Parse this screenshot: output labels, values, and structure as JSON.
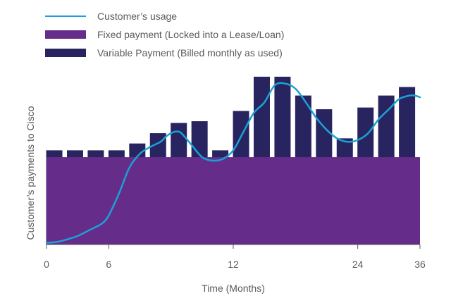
{
  "chart_data": {
    "type": "bar",
    "title": "",
    "xlabel": "Time (Months)",
    "ylabel": "Customer’s payments to Cisco",
    "xlim": [
      0,
      36
    ],
    "ylim": [
      0,
      100
    ],
    "xticks": [
      "0",
      "6",
      "12",
      "24",
      "36"
    ],
    "legend_position": "top-left",
    "grid": false,
    "colors": {
      "usage": "#1aa1d6",
      "fixed": "#652d89",
      "variable": "#28245f",
      "axis": "#555555"
    },
    "legend": [
      {
        "key": "usage",
        "label": "Customer’s usage",
        "kind": "line"
      },
      {
        "key": "fixed",
        "label": "Fixed payment (Locked into a Lease/Loan)",
        "kind": "box"
      },
      {
        "key": "variable",
        "label": "Variable Payment (Billed monthly as used)",
        "kind": "box"
      }
    ],
    "fixed_payment": 51,
    "bars": [
      {
        "x": 0.75,
        "value": 55
      },
      {
        "x": 2.75,
        "value": 55
      },
      {
        "x": 4.75,
        "value": 55
      },
      {
        "x": 6.75,
        "value": 55
      },
      {
        "x": 8.75,
        "value": 59
      },
      {
        "x": 10.75,
        "value": 65
      },
      {
        "x": 12.75,
        "value": 71
      },
      {
        "x": 14.75,
        "value": 72
      },
      {
        "x": 16.75,
        "value": 55
      },
      {
        "x": 18.75,
        "value": 78
      },
      {
        "x": 20.75,
        "value": 98
      },
      {
        "x": 22.75,
        "value": 98
      },
      {
        "x": 24.75,
        "value": 87
      },
      {
        "x": 26.75,
        "value": 79
      },
      {
        "x": 28.75,
        "value": 62
      },
      {
        "x": 30.75,
        "value": 80
      },
      {
        "x": 32.75,
        "value": 87
      },
      {
        "x": 34.75,
        "value": 92
      }
    ],
    "series": [
      {
        "key": "usage",
        "points": [
          [
            0,
            1
          ],
          [
            1,
            1.5
          ],
          [
            2,
            3
          ],
          [
            3,
            5
          ],
          [
            4,
            8
          ],
          [
            5,
            11
          ],
          [
            5.5,
            13
          ],
          [
            6,
            17
          ],
          [
            7,
            30
          ],
          [
            8,
            45
          ],
          [
            9,
            53
          ],
          [
            10,
            57
          ],
          [
            11,
            60
          ],
          [
            11.5,
            63
          ],
          [
            12,
            65
          ],
          [
            12.5,
            66
          ],
          [
            13,
            65
          ],
          [
            14,
            58
          ],
          [
            15,
            51
          ],
          [
            16,
            49
          ],
          [
            17,
            50
          ],
          [
            18,
            55
          ],
          [
            19,
            66
          ],
          [
            20,
            77
          ],
          [
            21,
            83
          ],
          [
            22,
            93
          ],
          [
            23,
            94
          ],
          [
            24,
            91
          ],
          [
            25,
            83
          ],
          [
            26,
            74
          ],
          [
            27,
            67
          ],
          [
            28,
            62
          ],
          [
            29,
            60
          ],
          [
            30,
            61
          ],
          [
            31,
            65
          ],
          [
            32,
            73
          ],
          [
            33,
            79
          ],
          [
            34,
            85
          ],
          [
            35,
            87
          ],
          [
            35.5,
            87
          ],
          [
            36,
            86
          ]
        ]
      }
    ]
  }
}
